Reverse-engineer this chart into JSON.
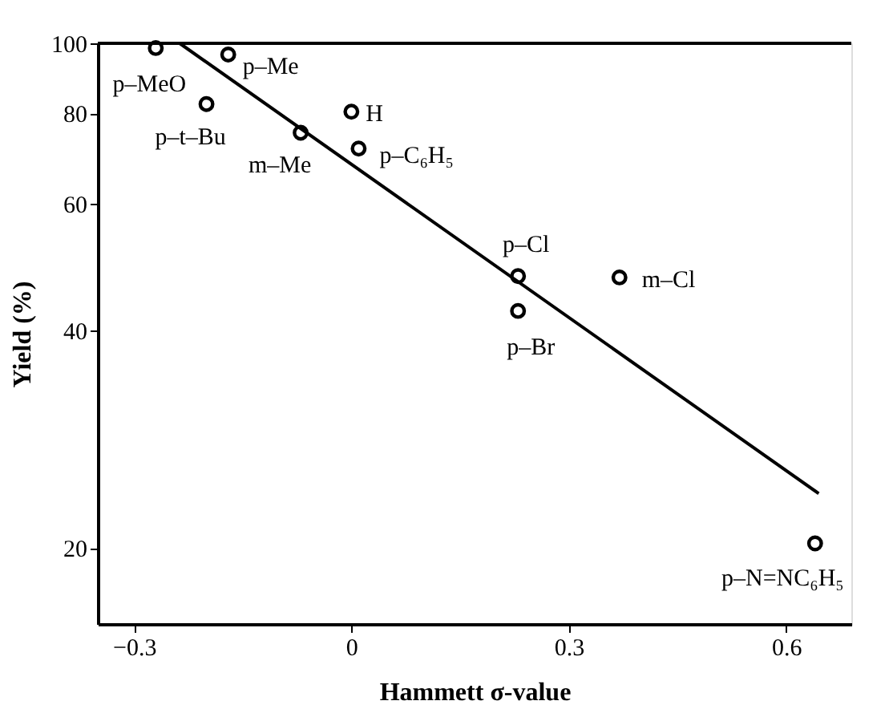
{
  "chart_data": {
    "type": "scatter",
    "xlabel": "Hammett σ-value",
    "ylabel": "Yield (%)",
    "series": [
      {
        "marker": "circle",
        "color": "#000000",
        "x": [
          -0.27,
          -0.17,
          -0.2,
          -0.07,
          0.0,
          0.01,
          0.23,
          0.23,
          0.37,
          0.64
        ],
        "values": [
          98.5,
          96.5,
          82.4,
          75.2,
          80.4,
          71.5,
          47.6,
          42.6,
          47.4,
          20.3
        ]
      },
      {
        "type": "line",
        "line_style": "solid",
        "color": "#000000",
        "x": [
          -0.237,
          0.645
        ],
        "values": [
          100,
          23.8
        ]
      }
    ],
    "annotations": [
      {
        "text": "p–MeO",
        "x": -0.27,
        "y": 98.5
      },
      {
        "text": "p–Me",
        "x": -0.17,
        "y": 96.5
      },
      {
        "text": "p–t–Bu",
        "x": -0.2,
        "y": 82.4
      },
      {
        "text": "m–Me",
        "x": -0.07,
        "y": 75.2
      },
      {
        "text": "H",
        "x": 0.0,
        "y": 80.4
      },
      {
        "text": "p–C₆H₅",
        "x": 0.01,
        "y": 71.5
      },
      {
        "text": "p–Cl",
        "x": 0.23,
        "y": 47.6
      },
      {
        "text": "p–Br",
        "x": 0.23,
        "y": 42.6
      },
      {
        "text": "m–Cl",
        "x": 0.37,
        "y": 47.4
      },
      {
        "text": "p–N=NC₆H₅",
        "x": 0.64,
        "y": 20.3
      }
    ],
    "xlim": [
      -0.35,
      0.69
    ],
    "ylim": [
      15.7,
      100
    ],
    "xticks": [
      {
        "value": -0.3,
        "label": "−0.3"
      },
      0,
      0.3,
      0.6
    ],
    "yticks": [
      20,
      40,
      60,
      80,
      100
    ],
    "log": "y",
    "grid": false
  }
}
